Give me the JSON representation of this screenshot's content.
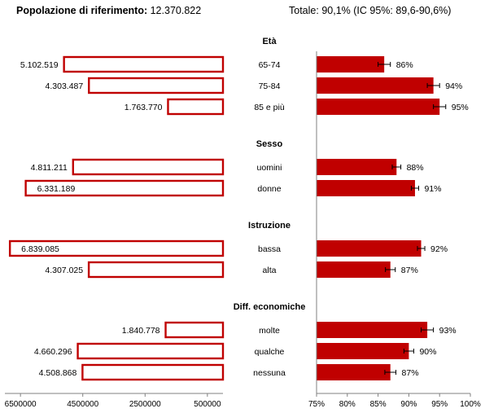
{
  "header": {
    "population_label": "Popolazione di riferimento:",
    "population_value": "12.370.822",
    "total_label": "Totale:",
    "total_value": "90,1% (IC 95%: 89,6-90,6%)"
  },
  "chart_data": {
    "type": "bar",
    "colors": {
      "bar": "#C00000",
      "outline": "#C00000",
      "error_bar": "#000000"
    },
    "groups": [
      {
        "title": "Età",
        "rows": [
          {
            "label": "65-74",
            "population": 5102519,
            "population_label": "5.102.519",
            "percent": 86,
            "percent_label": "86%",
            "ci": [
              85,
              87
            ]
          },
          {
            "label": "75-84",
            "population": 4303487,
            "population_label": "4.303.487",
            "percent": 94,
            "percent_label": "94%",
            "ci": [
              93,
              95
            ]
          },
          {
            "label": "85 e più",
            "population": 1763770,
            "population_label": "1.763.770",
            "percent": 95,
            "percent_label": "95%",
            "ci": [
              94,
              96
            ]
          }
        ]
      },
      {
        "title": "Sesso",
        "rows": [
          {
            "label": "uomini",
            "population": 4811211,
            "population_label": "4.811.211",
            "percent": 88,
            "percent_label": "88%",
            "ci": [
              87.3,
              88.7
            ]
          },
          {
            "label": "donne",
            "population": 6331189,
            "population_label": "6.331.189",
            "percent": 91,
            "percent_label": "91%",
            "ci": [
              90.4,
              91.6
            ]
          }
        ]
      },
      {
        "title": "Istruzione",
        "rows": [
          {
            "label": "bassa",
            "population": 6839085,
            "population_label": "6.839.085",
            "percent": 92,
            "percent_label": "92%",
            "ci": [
              91.4,
              92.6
            ]
          },
          {
            "label": "alta",
            "population": 4307025,
            "population_label": "4.307.025",
            "percent": 87,
            "percent_label": "87%",
            "ci": [
              86.2,
              87.8
            ]
          }
        ]
      },
      {
        "title": "Diff. economiche",
        "rows": [
          {
            "label": "molte",
            "population": 1840778,
            "population_label": "1.840.778",
            "percent": 93,
            "percent_label": "93%",
            "ci": [
              92,
              94
            ]
          },
          {
            "label": "qualche",
            "population": 4660296,
            "population_label": "4.660.296",
            "percent": 90,
            "percent_label": "90%",
            "ci": [
              89.2,
              90.8
            ]
          },
          {
            "label": "nessuna",
            "population": 4508868,
            "population_label": "4.508.868",
            "percent": 87,
            "percent_label": "87%",
            "ci": [
              86.1,
              87.9
            ]
          }
        ]
      }
    ],
    "left_axis": {
      "reversed": true,
      "range": [
        0,
        7000000
      ],
      "ticks": [
        6500000,
        4500000,
        2500000,
        500000
      ],
      "tick_labels": [
        "6500000",
        "4500000",
        "2500000",
        "500000"
      ]
    },
    "right_axis": {
      "range": [
        75,
        100
      ],
      "ticks": [
        75,
        80,
        85,
        90,
        95,
        100
      ],
      "tick_labels": [
        "75%",
        "80%",
        "85%",
        "90%",
        "95%",
        "100%"
      ]
    },
    "grid": false,
    "legend": "none"
  }
}
